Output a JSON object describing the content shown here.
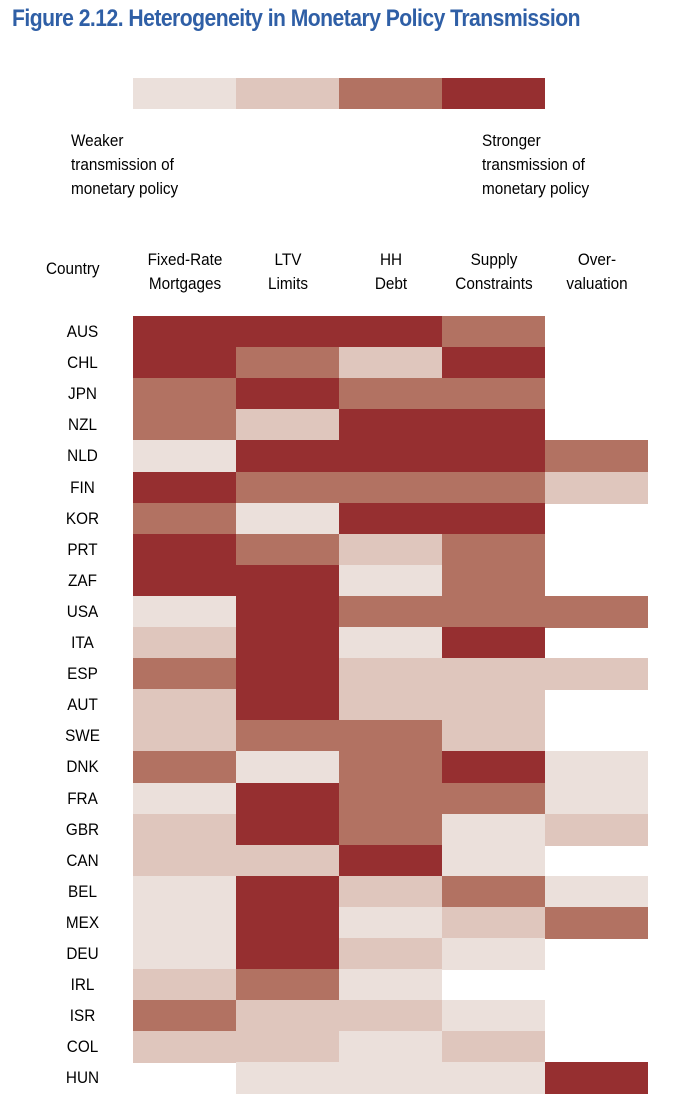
{
  "chart_data": {
    "type": "heatmap",
    "title": "Figure 2.12.  Heterogeneity in Monetary Policy Transmission",
    "legend": {
      "levels": [
        1,
        2,
        3,
        4
      ],
      "colors": [
        "#EBE0DB",
        "#DFC6BD",
        "#B27262",
        "#962F30"
      ],
      "weak_label": "Weaker transmission of monetary policy",
      "strong_label": "Stronger transmission of monetary policy",
      "note": "0 = no data (blank)"
    },
    "row_header": "Country",
    "columns": [
      "Fixed-Rate Mortgages",
      "LTV Limits",
      "HH Debt",
      "Supply Constraints",
      "Over-valuation"
    ],
    "column_lines": [
      [
        "Fixed-Rate",
        "Mortgages"
      ],
      [
        "LTV",
        "Limits"
      ],
      [
        "HH",
        "Debt"
      ],
      [
        "Supply",
        "Constraints"
      ],
      [
        "Over-",
        "valuation"
      ]
    ],
    "rows": [
      {
        "country": "AUS",
        "values": [
          4,
          4,
          4,
          3,
          0
        ]
      },
      {
        "country": "CHL",
        "values": [
          4,
          3,
          2,
          4,
          0
        ]
      },
      {
        "country": "JPN",
        "values": [
          3,
          4,
          3,
          3,
          0
        ]
      },
      {
        "country": "NZL",
        "values": [
          3,
          2,
          4,
          4,
          0
        ]
      },
      {
        "country": "NLD",
        "values": [
          1,
          4,
          4,
          4,
          3
        ]
      },
      {
        "country": "FIN",
        "values": [
          4,
          3,
          3,
          3,
          2
        ]
      },
      {
        "country": "KOR",
        "values": [
          3,
          1,
          4,
          4,
          0
        ]
      },
      {
        "country": "PRT",
        "values": [
          4,
          3,
          2,
          3,
          0
        ]
      },
      {
        "country": "ZAF",
        "values": [
          4,
          4,
          1,
          3,
          0
        ]
      },
      {
        "country": "USA",
        "values": [
          1,
          4,
          3,
          3,
          3
        ]
      },
      {
        "country": "ITA",
        "values": [
          2,
          4,
          1,
          4,
          0
        ]
      },
      {
        "country": "ESP",
        "values": [
          3,
          4,
          2,
          2,
          2
        ]
      },
      {
        "country": "AUT",
        "values": [
          2,
          4,
          2,
          2,
          0
        ]
      },
      {
        "country": "SWE",
        "values": [
          2,
          3,
          3,
          2,
          0
        ]
      },
      {
        "country": "DNK",
        "values": [
          3,
          1,
          3,
          4,
          1
        ]
      },
      {
        "country": "FRA",
        "values": [
          1,
          4,
          3,
          3,
          1
        ]
      },
      {
        "country": "GBR",
        "values": [
          2,
          4,
          3,
          1,
          2
        ]
      },
      {
        "country": "CAN",
        "values": [
          2,
          2,
          4,
          1,
          0
        ]
      },
      {
        "country": "BEL",
        "values": [
          1,
          4,
          2,
          3,
          1
        ]
      },
      {
        "country": "MEX",
        "values": [
          1,
          4,
          1,
          2,
          3
        ]
      },
      {
        "country": "DEU",
        "values": [
          1,
          4,
          2,
          1,
          0
        ]
      },
      {
        "country": "IRL",
        "values": [
          2,
          3,
          1,
          0,
          0
        ]
      },
      {
        "country": "ISR",
        "values": [
          3,
          2,
          2,
          1,
          0
        ]
      },
      {
        "country": "COL",
        "values": [
          2,
          2,
          1,
          2,
          0
        ]
      },
      {
        "country": "HUN",
        "values": [
          0,
          1,
          1,
          1,
          4
        ]
      }
    ]
  }
}
